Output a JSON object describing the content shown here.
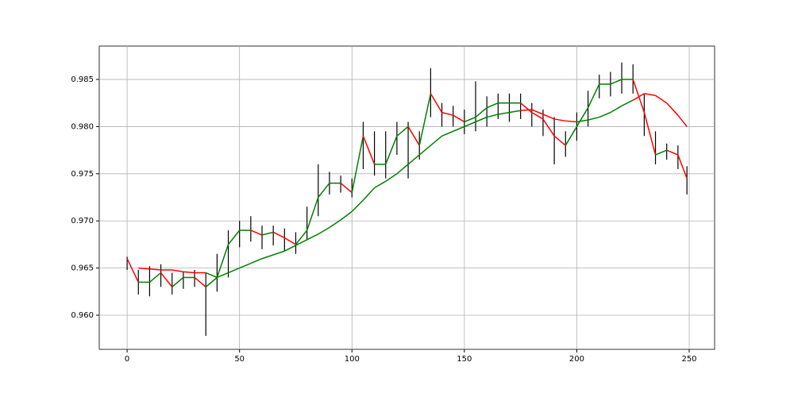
{
  "chart_data": {
    "type": "ohlc_ma",
    "x": [
      0,
      5,
      10,
      15,
      20,
      25,
      30,
      35,
      40,
      45,
      50,
      55,
      60,
      65,
      70,
      75,
      80,
      85,
      90,
      95,
      100,
      105,
      110,
      115,
      120,
      125,
      130,
      135,
      140,
      145,
      150,
      155,
      160,
      165,
      170,
      175,
      180,
      185,
      190,
      195,
      200,
      205,
      210,
      215,
      220,
      225,
      230,
      235,
      240,
      245,
      249
    ],
    "close": [
      0.966,
      0.9635,
      0.9635,
      0.9645,
      0.963,
      0.964,
      0.964,
      0.963,
      0.964,
      0.9675,
      0.969,
      0.969,
      0.9685,
      0.9688,
      0.9682,
      0.9675,
      0.969,
      0.9725,
      0.974,
      0.974,
      0.973,
      0.979,
      0.976,
      0.976,
      0.979,
      0.98,
      0.978,
      0.9835,
      0.9815,
      0.9812,
      0.9805,
      0.981,
      0.982,
      0.9825,
      0.9825,
      0.9825,
      0.9815,
      0.9808,
      0.979,
      0.978,
      0.98,
      0.982,
      0.9845,
      0.9845,
      0.985,
      0.985,
      0.9815,
      0.977,
      0.9775,
      0.977,
      0.9745
    ],
    "high": [
      0.9662,
      0.9648,
      0.9652,
      0.9654,
      0.9645,
      0.9646,
      0.9648,
      0.9645,
      0.9665,
      0.969,
      0.97,
      0.9705,
      0.9695,
      0.9695,
      0.9692,
      0.9688,
      0.9715,
      0.976,
      0.9752,
      0.9748,
      0.9745,
      0.9805,
      0.9795,
      0.9795,
      0.9805,
      0.9805,
      0.9795,
      0.9862,
      0.9825,
      0.9822,
      0.9818,
      0.9848,
      0.9832,
      0.9835,
      0.9835,
      0.9835,
      0.9825,
      0.9818,
      0.981,
      0.9795,
      0.9815,
      0.9838,
      0.9855,
      0.9858,
      0.9868,
      0.9866,
      0.9835,
      0.9795,
      0.9782,
      0.978,
      0.9758
    ],
    "low": [
      0.9648,
      0.9622,
      0.962,
      0.963,
      0.9622,
      0.9628,
      0.963,
      0.9578,
      0.9625,
      0.964,
      0.9672,
      0.9678,
      0.967,
      0.9674,
      0.9668,
      0.9665,
      0.968,
      0.9705,
      0.9728,
      0.973,
      0.9725,
      0.9755,
      0.9748,
      0.9745,
      0.977,
      0.9745,
      0.9765,
      0.981,
      0.98,
      0.98,
      0.9792,
      0.9795,
      0.98,
      0.9808,
      0.9805,
      0.9808,
      0.98,
      0.979,
      0.976,
      0.9768,
      0.9785,
      0.98,
      0.983,
      0.9832,
      0.9835,
      0.9835,
      0.979,
      0.976,
      0.9765,
      0.9755,
      0.9728
    ],
    "ma": [
      null,
      0.965,
      0.9649,
      0.9648,
      0.9648,
      0.9646,
      0.9645,
      0.9645,
      0.964,
      0.9645,
      0.965,
      0.9655,
      0.966,
      0.9664,
      0.9668,
      0.9674,
      0.968,
      0.9686,
      0.9693,
      0.9701,
      0.971,
      0.9722,
      0.9735,
      0.9742,
      0.975,
      0.976,
      0.977,
      0.978,
      0.979,
      0.9795,
      0.98,
      0.9805,
      0.981,
      0.9813,
      0.9815,
      0.9817,
      0.9818,
      0.9813,
      0.9808,
      0.9806,
      0.9805,
      0.9807,
      0.981,
      0.9815,
      0.9822,
      0.9828,
      0.9835,
      0.9833,
      0.9825,
      0.9812,
      0.98
    ],
    "up_color": "#008000",
    "down_color": "#ff0000",
    "bar_color": "#000000",
    "xlim": [
      -12.4,
      261.3
    ],
    "ylim": [
      0.95638,
      0.98854
    ],
    "xticks": [
      0,
      50,
      100,
      150,
      200,
      250
    ],
    "yticks": [
      {
        "value": 0.96,
        "label": "0.960"
      },
      {
        "value": 0.965,
        "label": "0.965"
      },
      {
        "value": 0.97,
        "label": "0.970"
      },
      {
        "value": 0.975,
        "label": "0.975"
      },
      {
        "value": 0.98,
        "label": "0.980"
      },
      {
        "value": 0.985,
        "label": "0.985"
      }
    ],
    "grid": true
  }
}
